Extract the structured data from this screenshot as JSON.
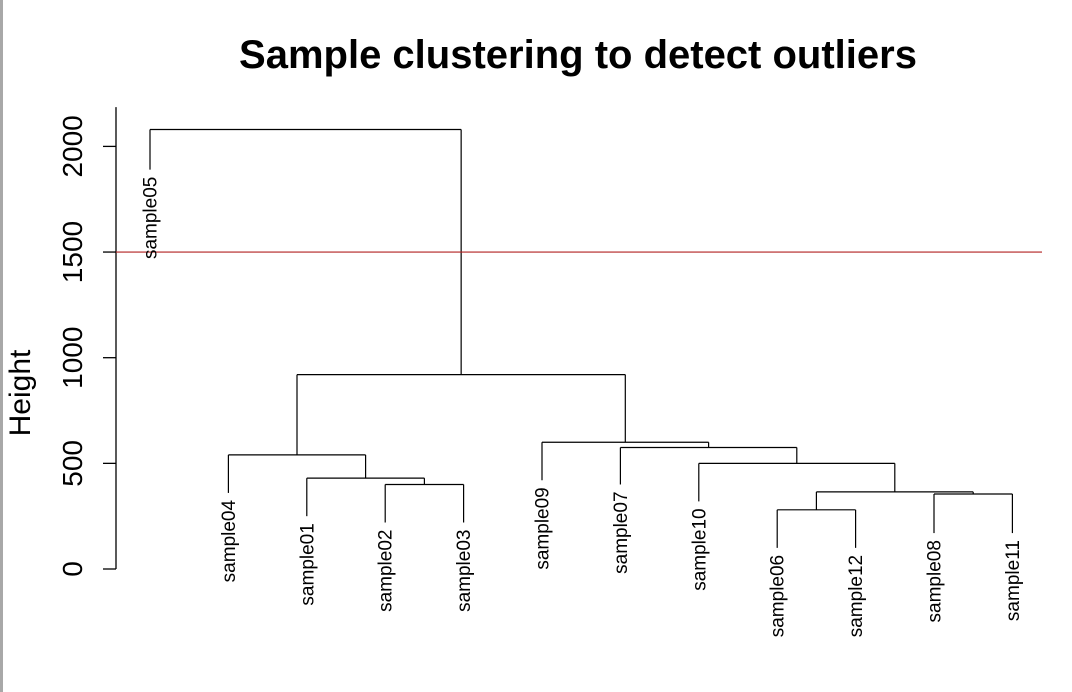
{
  "chart_data": {
    "type": "dendrogram",
    "title": "Sample clustering to detect outliers",
    "ylabel": "Height",
    "xlabel": "",
    "ylim": [
      0,
      2200
    ],
    "yticks": [
      0,
      500,
      1000,
      1500,
      2000
    ],
    "cut_line": {
      "height": 1500,
      "color": "#b22222"
    },
    "leaves": [
      "sample05",
      "sample04",
      "sample01",
      "sample02",
      "sample03",
      "sample09",
      "sample07",
      "sample10",
      "sample06",
      "sample12",
      "sample08",
      "sample11"
    ],
    "leaf_heights": [
      1890,
      360,
      250,
      220,
      220,
      420,
      400,
      320,
      100,
      100,
      170,
      170
    ],
    "merges": [
      {
        "left": "sample06",
        "right": "sample12",
        "height": 280
      },
      {
        "left": "sample08",
        "right": "sample11",
        "height": 355
      },
      {
        "left": "m1",
        "right": "m2",
        "height": 365
      },
      {
        "left": "sample02",
        "right": "sample03",
        "height": 400
      },
      {
        "left": "sample01",
        "right": "m4",
        "height": 430
      },
      {
        "left": "sample10",
        "right": "m3",
        "height": 500
      },
      {
        "left": "sample04",
        "right": "m5",
        "height": 540
      },
      {
        "left": "sample07",
        "right": "m6",
        "height": 575
      },
      {
        "left": "sample09",
        "right": "m8",
        "height": 600
      },
      {
        "left": "m7",
        "right": "m9",
        "height": 920
      },
      {
        "left": "sample05",
        "right": "m10",
        "height": 2080
      }
    ]
  }
}
